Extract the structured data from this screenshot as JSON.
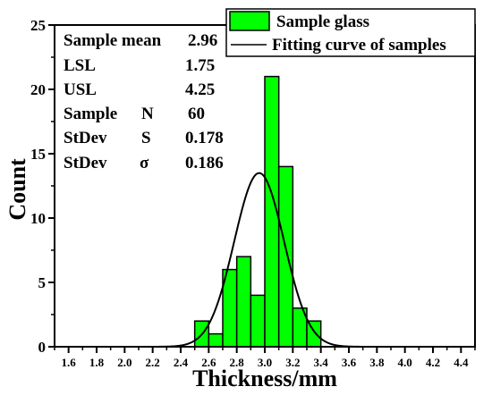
{
  "chart_data": {
    "type": "bar",
    "xlabel": "Thickness/mm",
    "ylabel": "Count",
    "xlim": [
      1.5,
      4.5
    ],
    "ylim": [
      0,
      25
    ],
    "xticks": [
      "1.6",
      "1.8",
      "2.0",
      "2.2",
      "2.4",
      "2.6",
      "2.8",
      "3.0",
      "3.2",
      "3.4",
      "3.6",
      "3.8",
      "4.0",
      "4.2",
      "4.4"
    ],
    "yticks": [
      "0",
      "5",
      "10",
      "15",
      "20",
      "25"
    ],
    "bin_width": 0.1,
    "bins": [
      {
        "x": 2.55,
        "count": 2
      },
      {
        "x": 2.65,
        "count": 1
      },
      {
        "x": 2.75,
        "count": 6
      },
      {
        "x": 2.85,
        "count": 7
      },
      {
        "x": 2.95,
        "count": 4
      },
      {
        "x": 3.05,
        "count": 21
      },
      {
        "x": 3.15,
        "count": 14
      },
      {
        "x": 3.25,
        "count": 3
      },
      {
        "x": 3.35,
        "count": 2
      }
    ],
    "series": [
      {
        "name": "Sample glass",
        "kind": "histogram",
        "color": "#00ff00"
      },
      {
        "name": "Fitting curve of samples",
        "kind": "normal_fit",
        "mean": 2.96,
        "sigma": 0.178,
        "peak": 13.5,
        "color": "#000000"
      }
    ],
    "legend_position": "top-right",
    "stats": [
      {
        "label": "Sample mean",
        "symbol": "",
        "value": "2.96"
      },
      {
        "label": "LSL",
        "symbol": "",
        "value": "1.75"
      },
      {
        "label": "USL",
        "symbol": "",
        "value": "4.25"
      },
      {
        "label": "Sample",
        "symbol": "N",
        "value": "60"
      },
      {
        "label": "StDev",
        "symbol": "S",
        "value": "0.178"
      },
      {
        "label": "StDev",
        "symbol": "σ",
        "value": "0.186"
      }
    ]
  }
}
